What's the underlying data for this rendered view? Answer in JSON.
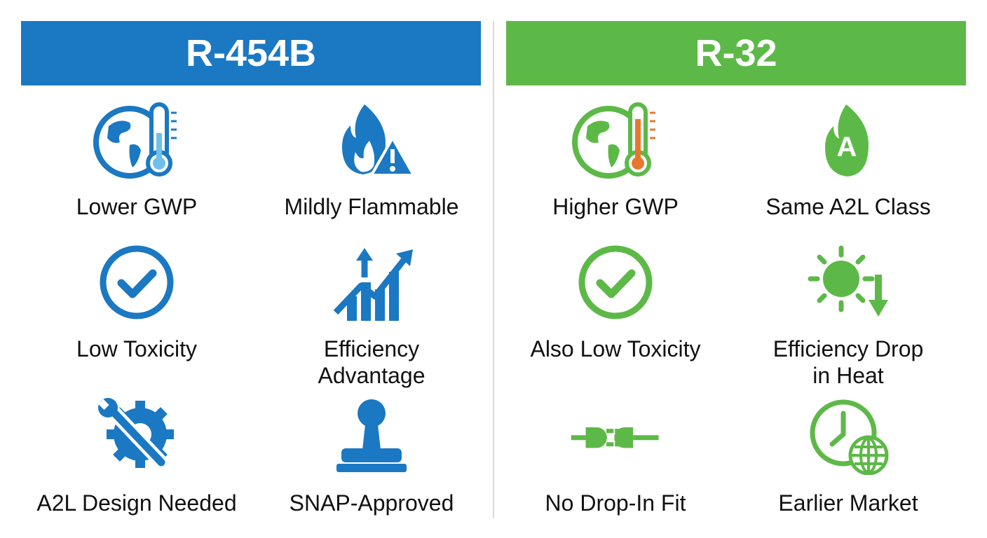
{
  "panels": [
    {
      "title": "R-454B",
      "items": [
        {
          "label": "Lower GWP"
        },
        {
          "label": "Mildly Flammable"
        },
        {
          "label": "Low Toxicity"
        },
        {
          "label": "Efficiency Advantage"
        },
        {
          "label": "A2L Design Needed"
        },
        {
          "label": "SNAP-Approved"
        }
      ]
    },
    {
      "title": "R-32",
      "items": [
        {
          "label": "Higher GWP"
        },
        {
          "label": "Same A2L Class",
          "icon_text": "A"
        },
        {
          "label": "Also Low Toxicity"
        },
        {
          "label": "Efficiency Drop in Heat"
        },
        {
          "label": "No Drop-In Fit"
        },
        {
          "label": "Earlier Market"
        }
      ]
    }
  ]
}
